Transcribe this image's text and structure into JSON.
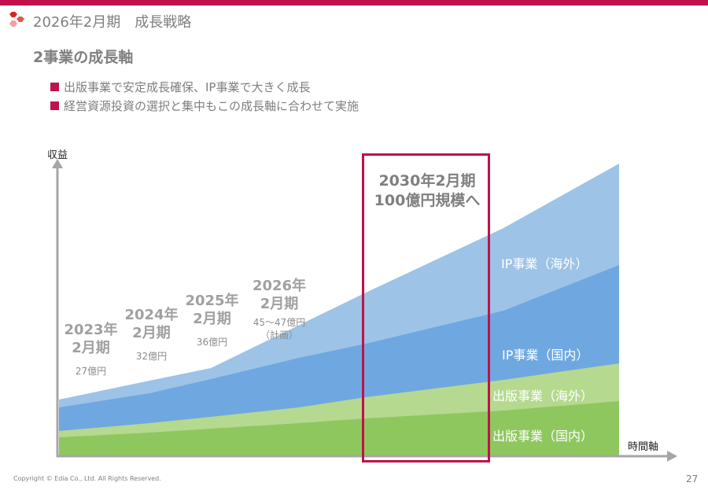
{
  "header": {
    "title": "2026年2月期　成長戦略",
    "logo": "hexagon-cluster-logo",
    "accent": "#c0114a"
  },
  "subtitle": "2事業の成長軸",
  "bullets": [
    "出版事業で安定成長確保、IP事業で大きく成長",
    "経営資源投資の選択と集中もこの成長軸に合わせて実施"
  ],
  "diagram": {
    "y_axis_label": "収益",
    "x_axis_label": "時間軸",
    "periods": [
      {
        "year": "2023年",
        "month": "2月期",
        "amount": "27億円"
      },
      {
        "year": "2024年",
        "month": "2月期",
        "amount": "32億円"
      },
      {
        "year": "2025年",
        "month": "2月期",
        "amount": "36億円"
      },
      {
        "year": "2026年",
        "month": "2月期",
        "amount": "45～47億円",
        "note": "（計画）"
      }
    ],
    "target": {
      "line1": "2030年2月期",
      "line2": "100億円規模へ"
    },
    "segments": [
      {
        "label": "IP事業（海外）",
        "color": "#9dc3e6"
      },
      {
        "label": "IP事業（国内）",
        "color": "#6fa8e0"
      },
      {
        "label": "出版事業（海外）",
        "color": "#b5d98f"
      },
      {
        "label": "出版事業（国内）",
        "color": "#8fc75f"
      }
    ]
  },
  "footer": {
    "copyright": "Copyright © Edia Co., Ltd. All Rights Reserved.",
    "page": "27"
  }
}
